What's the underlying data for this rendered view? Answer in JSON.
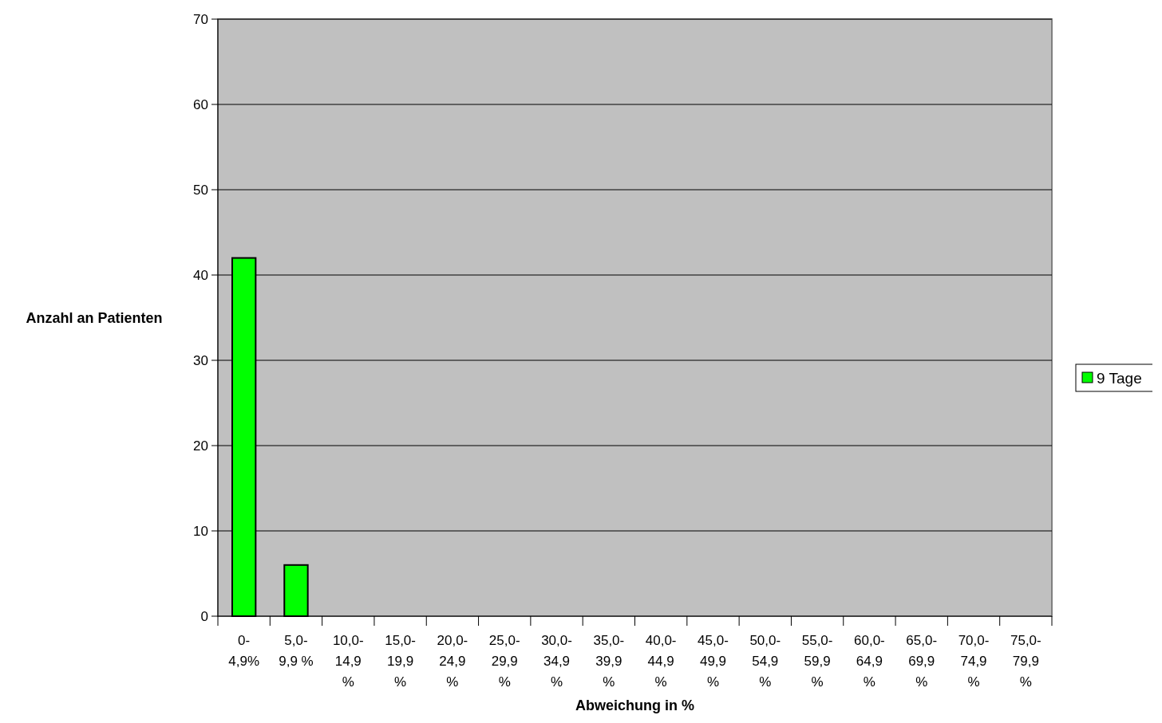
{
  "chart_data": {
    "type": "bar",
    "xlabel": "Abweichung in %",
    "ylabel": "Anzahl an Patienten",
    "categories": [
      "0-4,9%",
      "5,0-9,9 %",
      "10,0-14,9 %",
      "15,0-19,9 %",
      "20,0-24,9 %",
      "25,0-29,9 %",
      "30,0-34,9 %",
      "35,0-39,9 %",
      "40,0-44,9 %",
      "45,0-49,9 %",
      "50,0-54,9 %",
      "55,0-59,9 %",
      "60,0-64,9 %",
      "65,0-69,9 %",
      "70,0-74,9 %",
      "75,0-79,9 %"
    ],
    "series": [
      {
        "name": "9 Tage",
        "color": "#00ff00",
        "values": [
          42,
          6,
          0,
          0,
          0,
          0,
          0,
          0,
          0,
          0,
          0,
          0,
          0,
          0,
          0,
          0
        ]
      }
    ],
    "ylim": [
      0,
      70
    ],
    "yticks": [
      0,
      10,
      20,
      30,
      40,
      50,
      60,
      70
    ],
    "grid": "y",
    "legend": "right"
  }
}
